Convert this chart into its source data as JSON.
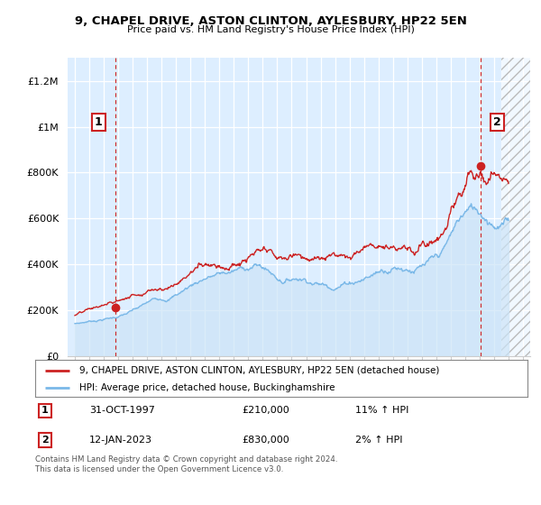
{
  "title": "9, CHAPEL DRIVE, ASTON CLINTON, AYLESBURY, HP22 5EN",
  "subtitle": "Price paid vs. HM Land Registry's House Price Index (HPI)",
  "ylabel_ticks": [
    "£0",
    "£200K",
    "£400K",
    "£600K",
    "£800K",
    "£1M",
    "£1.2M"
  ],
  "ytick_values": [
    0,
    200000,
    400000,
    600000,
    800000,
    1000000,
    1200000
  ],
  "ylim": [
    0,
    1300000
  ],
  "xlim_start": 1994.5,
  "xlim_end": 2026.5,
  "hpi_color": "#7ab8e8",
  "hpi_fill_color": "#cce4f7",
  "price_color": "#cc2222",
  "bg_color": "#ddeeff",
  "sale1_x": 1997.83,
  "sale1_y": 210000,
  "sale2_x": 2023.04,
  "sale2_y": 830000,
  "legend_label1": "9, CHAPEL DRIVE, ASTON CLINTON, AYLESBURY, HP22 5EN (detached house)",
  "legend_label2": "HPI: Average price, detached house, Buckinghamshire",
  "sale1_text": "31-OCT-1997",
  "sale1_price": "£210,000",
  "sale1_hpi": "11% ↑ HPI",
  "sale2_text": "12-JAN-2023",
  "sale2_price": "£830,000",
  "sale2_hpi": "2% ↑ HPI",
  "footnote": "Contains HM Land Registry data © Crown copyright and database right 2024.\nThis data is licensed under the Open Government Licence v3.0.",
  "background_color": "#ffffff",
  "grid_color": "#aaaacc"
}
